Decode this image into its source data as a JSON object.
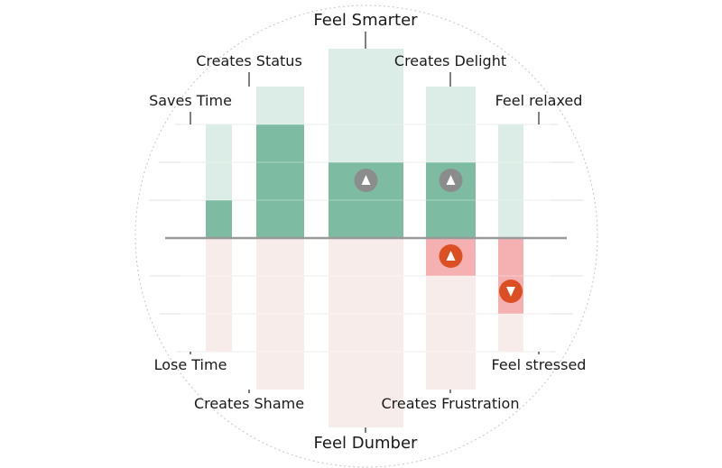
{
  "chart_data": {
    "type": "bar",
    "title": "",
    "xlabel": "",
    "ylabel": "",
    "ylim": [
      -5,
      5
    ],
    "baseline": 0,
    "columns": [
      {
        "top_label": "Saves Time",
        "bottom_label": "Lose Time",
        "positive_extent": 3,
        "negative_extent": -3,
        "value": 1,
        "marker": ""
      },
      {
        "top_label": "Creates Status",
        "bottom_label": "Creates Shame",
        "positive_extent": 4,
        "negative_extent": -4,
        "value": 3,
        "marker": ""
      },
      {
        "top_label": "Feel Smarter",
        "bottom_label": "Feel Dumber",
        "positive_extent": 5,
        "negative_extent": -5,
        "value": 2,
        "marker": "up"
      },
      {
        "top_label": "Creates Delight",
        "bottom_label": "Creates Frustration",
        "positive_extent": 4,
        "negative_extent": -4,
        "value": 2,
        "negative_value": -1,
        "marker": "up",
        "negative_marker": "up"
      },
      {
        "top_label": "Feel relaxed",
        "bottom_label": "Feel stressed",
        "positive_extent": 3,
        "negative_extent": -3,
        "value": 0,
        "negative_value": -2,
        "negative_marker": "down"
      }
    ]
  },
  "colors": {
    "positive_track": "#dcece6",
    "positive_fill": "#7dbca3",
    "negative_track": "#f8ecea",
    "negative_fill": "#f5b0b2",
    "neutral_marker": "#8a8d8b",
    "alert_marker": "#dc4f22",
    "baseline": "#9a9a9a",
    "grid": "#e2e2e2",
    "circle_outline": "#c6c6c6"
  },
  "icons": {
    "neutral_up": "triangle-up-icon",
    "alert_up": "triangle-up-icon",
    "alert_down": "triangle-down-icon"
  }
}
